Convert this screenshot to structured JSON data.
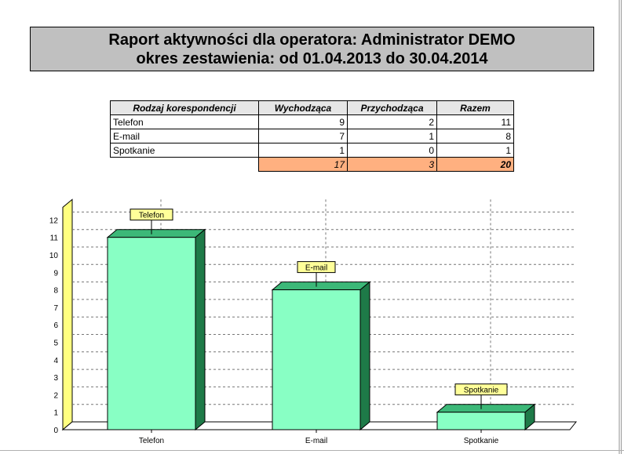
{
  "report": {
    "title_line1": "Raport aktywności dla operatora: Administrator DEMO",
    "title_line2": "okres zestawienia: od 01.04.2013 do 30.04.2014"
  },
  "table": {
    "headers": [
      "Rodzaj korespondencji",
      "Wychodząca",
      "Przychodząca",
      "Razem"
    ],
    "rows": [
      [
        "Telefon",
        "9",
        "2",
        "11"
      ],
      [
        "E-mail",
        "7",
        "1",
        "8"
      ],
      [
        "Spotkanie",
        "1",
        "0",
        "1"
      ]
    ],
    "totals": [
      "17",
      "3",
      "20"
    ]
  },
  "colors": {
    "bar_front": "#88ffc4",
    "bar_top": "#3cb878",
    "bar_side": "#1e7a48",
    "axis_wall": "#ffff80",
    "label_box": "#ffff99"
  },
  "chart_data": {
    "type": "bar",
    "categories": [
      "Telefon",
      "E-mail",
      "Spotkanie"
    ],
    "values": [
      11,
      8,
      1
    ],
    "data_labels": [
      "Telefon",
      "E-mail",
      "Spotkanie"
    ],
    "yticks": [
      "0",
      "1",
      "2",
      "3",
      "4",
      "5",
      "6",
      "7",
      "8",
      "9",
      "10",
      "11",
      "12"
    ],
    "ylim": [
      0,
      12
    ],
    "grid": true,
    "style": "3d"
  }
}
